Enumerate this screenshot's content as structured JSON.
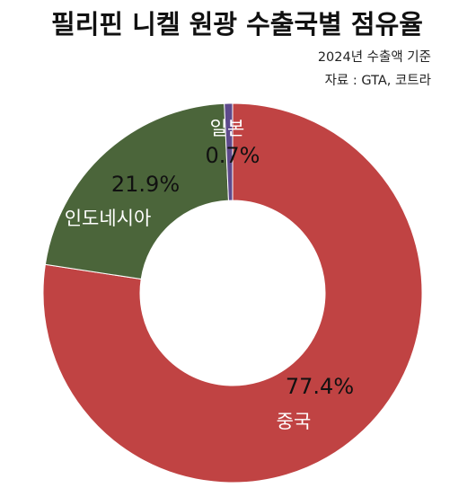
{
  "title": "필리핀 니켈 원광 수출국별 점유율",
  "notes": {
    "basis": "2024년 수출액 기준",
    "source": "자료 : GTA, 코트라"
  },
  "chart_data": {
    "type": "pie",
    "title": "필리핀 니켈 원광 수출국별 점유율",
    "unit": "%",
    "slices": [
      {
        "name": "중국",
        "value": 77.4,
        "label": "77.4%",
        "color": "#c04343"
      },
      {
        "name": "인도네시아",
        "value": 21.9,
        "label": "21.9%",
        "color": "#4b653a"
      },
      {
        "name": "일본",
        "value": 0.7,
        "label": "0.7%",
        "color": "#5e4a8c"
      }
    ]
  }
}
